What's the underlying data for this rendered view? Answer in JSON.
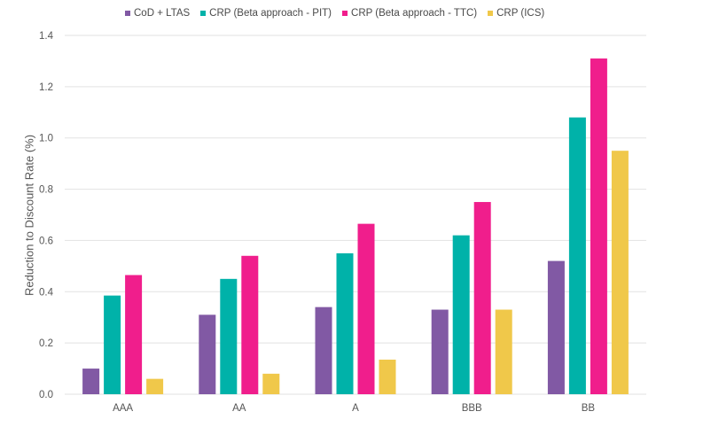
{
  "chart_data": {
    "type": "bar",
    "title": "",
    "xlabel": "",
    "ylabel": "Reduction to Discount Rate (%)",
    "ylim": [
      0,
      1.4
    ],
    "yticks": [
      "0.0",
      "0.2",
      "0.4",
      "0.6",
      "0.8",
      "1.0",
      "1.2",
      "1.4"
    ],
    "ytick_values": [
      0,
      0.2,
      0.4,
      0.6,
      0.8,
      1.0,
      1.2,
      1.4
    ],
    "grid": true,
    "legend_position": "top-center",
    "categories": [
      "AAA",
      "AA",
      "A",
      "BBB",
      "BB"
    ],
    "series": [
      {
        "name": "CoD + LTAS",
        "color": "#8159A4",
        "values": [
          0.1,
          0.31,
          0.34,
          0.33,
          0.52
        ]
      },
      {
        "name": "CRP (Beta approach - PIT)",
        "color": "#00B2A9",
        "values": [
          0.385,
          0.45,
          0.55,
          0.62,
          1.08
        ]
      },
      {
        "name": "CRP (Beta approach - TTC)",
        "color": "#F01E8C",
        "values": [
          0.465,
          0.54,
          0.665,
          0.75,
          1.31
        ]
      },
      {
        "name": "CRP (ICS)",
        "color": "#F0C84A",
        "values": [
          0.06,
          0.08,
          0.135,
          0.33,
          0.95
        ]
      }
    ]
  }
}
